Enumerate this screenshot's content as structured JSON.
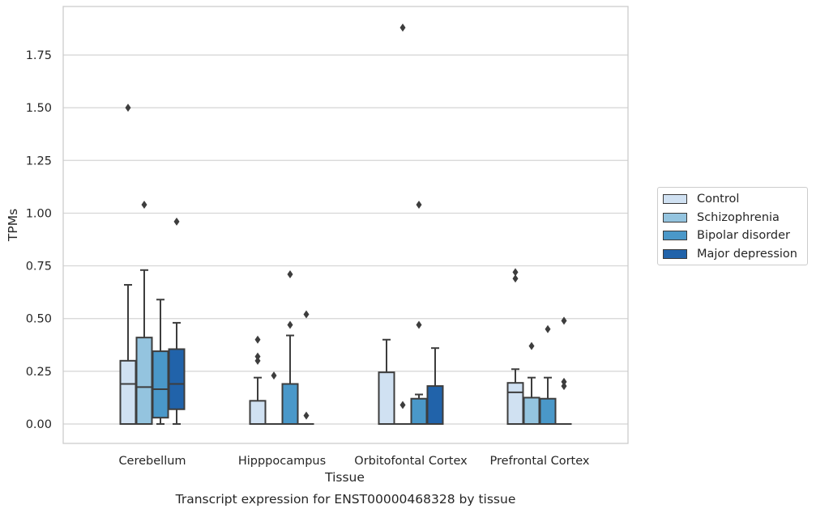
{
  "chart_data": {
    "type": "box",
    "title": "Transcript expression for ENST00000468328 by tissue",
    "xlabel": "Tissue",
    "ylabel": "TPMs",
    "ylim": [
      -0.09,
      1.98
    ],
    "yticks": [
      "0.00",
      "0.25",
      "0.50",
      "0.75",
      "1.00",
      "1.25",
      "1.50",
      "1.75"
    ],
    "ytick_values": [
      0,
      0.25,
      0.5,
      0.75,
      1.0,
      1.25,
      1.5,
      1.75
    ],
    "grid": "horizontal",
    "legend_position": "right",
    "categories": [
      "Cerebellum",
      "Hipppocampus",
      "Orbitofontal Cortex",
      "Prefrontal Cortex"
    ],
    "series": [
      {
        "name": "Control",
        "color": "#d0e1f2",
        "boxes": [
          {
            "whislo": 0,
            "q1": 0,
            "med": 0.19,
            "q3": 0.3,
            "whishi": 0.66,
            "fliers": [
              1.5
            ]
          },
          {
            "whislo": 0,
            "q1": 0,
            "med": 0,
            "q3": 0.11,
            "whishi": 0.22,
            "fliers": [
              0.3,
              0.32,
              0.4
            ]
          },
          {
            "whislo": 0,
            "q1": 0,
            "med": 0,
            "q3": 0.245,
            "whishi": 0.4,
            "fliers": []
          },
          {
            "whislo": 0,
            "q1": 0,
            "med": 0.15,
            "q3": 0.195,
            "whishi": 0.26,
            "fliers": [
              0.69,
              0.72
            ]
          }
        ]
      },
      {
        "name": "Schizophrenia",
        "color": "#94c4df",
        "boxes": [
          {
            "whislo": 0,
            "q1": 0,
            "med": 0.175,
            "q3": 0.41,
            "whishi": 0.73,
            "fliers": [
              1.04
            ]
          },
          {
            "whislo": 0,
            "q1": 0,
            "med": 0,
            "q3": 0,
            "whishi": 0,
            "fliers": [
              0.23
            ]
          },
          {
            "whislo": 0,
            "q1": 0,
            "med": 0,
            "q3": 0,
            "whishi": 0,
            "fliers": [
              0.09,
              1.88
            ]
          },
          {
            "whislo": 0,
            "q1": 0,
            "med": 0,
            "q3": 0.125,
            "whishi": 0.22,
            "fliers": [
              0.37
            ]
          }
        ]
      },
      {
        "name": "Bipolar disorder",
        "color": "#4a98c9",
        "boxes": [
          {
            "whislo": 0,
            "q1": 0.03,
            "med": 0.165,
            "q3": 0.345,
            "whishi": 0.59,
            "fliers": []
          },
          {
            "whislo": 0,
            "q1": 0,
            "med": 0,
            "q3": 0.19,
            "whishi": 0.42,
            "fliers": [
              0.47,
              0.71
            ]
          },
          {
            "whislo": 0,
            "q1": 0,
            "med": 0,
            "q3": 0.12,
            "whishi": 0.14,
            "fliers": [
              0.47,
              1.04
            ]
          },
          {
            "whislo": 0,
            "q1": 0,
            "med": 0,
            "q3": 0.12,
            "whishi": 0.22,
            "fliers": [
              0.45
            ]
          }
        ]
      },
      {
        "name": "Major depression",
        "color": "#2163aa",
        "boxes": [
          {
            "whislo": 0,
            "q1": 0.07,
            "med": 0.19,
            "q3": 0.355,
            "whishi": 0.48,
            "fliers": [
              0.96
            ]
          },
          {
            "whislo": 0,
            "q1": 0,
            "med": 0,
            "q3": 0,
            "whishi": 0,
            "fliers": [
              0.04,
              0.52
            ]
          },
          {
            "whislo": 0,
            "q1": 0,
            "med": 0,
            "q3": 0.18,
            "whishi": 0.36,
            "fliers": []
          },
          {
            "whislo": 0,
            "q1": 0,
            "med": 0,
            "q3": 0,
            "whishi": 0,
            "fliers": [
              0.18,
              0.2,
              0.49
            ]
          }
        ]
      }
    ]
  }
}
